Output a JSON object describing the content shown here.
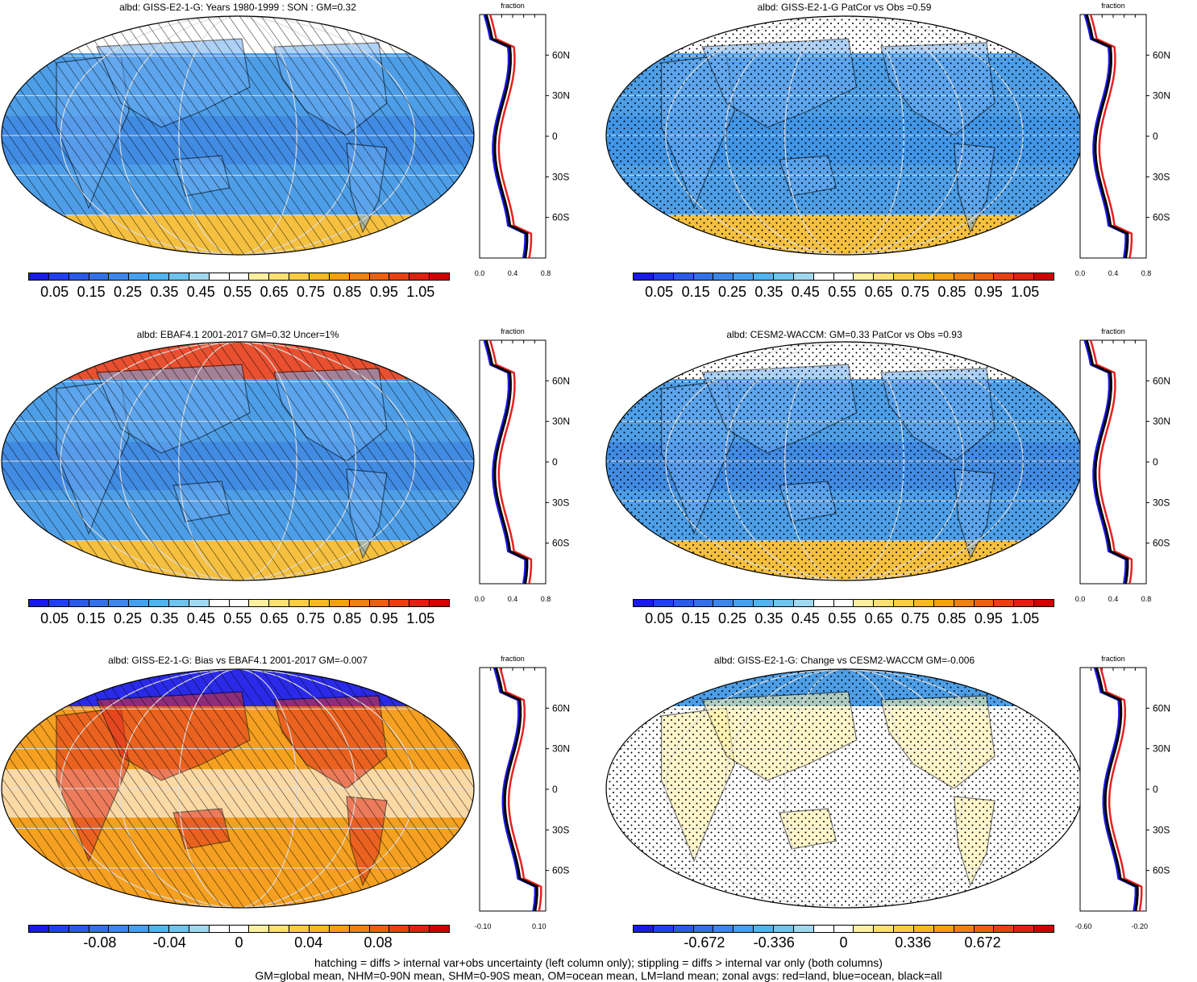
{
  "panels": [
    {
      "title": "albd: GISS-E2-1-G: Years 1980-1999 : SON : GM=0.32",
      "type": "abs",
      "mark": "hatch",
      "antarctic": "#f5c040",
      "arctic": "#ffffff",
      "ocean": "#4d9ee6",
      "land": "#6aaaf0",
      "tropics": "#3a7fe0"
    },
    {
      "title": "albd: GISS-E2-1-G PatCor vs Obs =0.59",
      "type": "abs",
      "mark": "stipple",
      "antarctic": "#f5c040",
      "arctic": "#ffffff",
      "ocean": "#4d9ee6",
      "land": "#6aaaf0",
      "tropics": "#3a8fe6"
    },
    {
      "title": "albd: EBAF4.1 2001-2017 GM=0.32 Uncer=1%",
      "type": "abs",
      "mark": "hatch",
      "antarctic": "#f5c040",
      "arctic": "#e85030",
      "ocean": "#4d9ee6",
      "land": "#6aaaf0",
      "tropics": "#3a7fe0"
    },
    {
      "title": "albd: CESM2-WACCM: GM=0.33 PatCor vs Obs =0.93",
      "type": "abs",
      "mark": "stipple",
      "antarctic": "#f5c040",
      "arctic": "#ffffff",
      "ocean": "#4d9ee6",
      "land": "#6aaaf0",
      "tropics": "#3a7fe0"
    },
    {
      "title": "albd: GISS-E2-1-G: Bias vs EBAF4.1 2001-2017  GM=-0.007",
      "type": "bias",
      "mark": "hatch",
      "antarctic": "#f5a020",
      "arctic": "#2a2ae8",
      "ocean": "#f5a020",
      "land": "#e03020",
      "tropics": "#ffffff"
    },
    {
      "title": "albd: GISS-E2-1-G: Change vs CESM2-WACCM GM=-0.006",
      "type": "change",
      "mark": "stipple",
      "antarctic": "#ffffff",
      "arctic": "#4d9ee6",
      "ocean": "#ffffff",
      "land": "#fff0a0",
      "tropics": "#ffffff"
    }
  ],
  "zonal": [
    {
      "label": "fraction",
      "ticks_x": [
        "0.0",
        "0.4",
        "0.8"
      ],
      "ticks_y": [
        "60N",
        "30N",
        "0",
        "30S",
        "60S"
      ]
    },
    {
      "label": "fraction",
      "ticks_x": [
        "0.0",
        "0.4",
        "0.8"
      ],
      "ticks_y": [
        "60N",
        "30N",
        "0",
        "30S",
        "60S"
      ]
    },
    {
      "label": "fraction",
      "ticks_x": [
        "0.0",
        "0.4",
        "0.8"
      ],
      "ticks_y": [
        "60N",
        "30N",
        "0",
        "30S",
        "60S"
      ]
    },
    {
      "label": "fraction",
      "ticks_x": [
        "0.0",
        "0.4",
        "0.8"
      ],
      "ticks_y": [
        "60N",
        "30N",
        "0",
        "30S",
        "60S"
      ]
    },
    {
      "label": "fraction",
      "ticks_x": [
        "-0.10",
        "0.10"
      ],
      "ticks_y": [
        "60N",
        "30N",
        "0",
        "30S",
        "60S"
      ]
    },
    {
      "label": "fraction",
      "ticks_x": [
        "-0.60",
        "-0.20"
      ],
      "ticks_y": [
        "60N",
        "30N",
        "0",
        "30S",
        "60S"
      ]
    }
  ],
  "colorbars": {
    "abs_labels": [
      "0.05",
      "0.15",
      "0.25",
      "0.35",
      "0.45",
      "0.55",
      "0.65",
      "0.75",
      "0.85",
      "0.95",
      "1.05"
    ],
    "bias_labels": [
      "-0.08",
      "-0.04",
      "0",
      "0.04",
      "0.08"
    ],
    "change_labels": [
      "-0.672",
      "-0.336",
      "0",
      "0.336",
      "0.672"
    ],
    "colors": [
      "#1a1ae6",
      "#2040f0",
      "#2a5ae8",
      "#3470e8",
      "#3c86ec",
      "#46a0f0",
      "#50b4f0",
      "#6ec4ee",
      "#a0d8f0",
      "#ffffff",
      "#ffffff",
      "#fff0a0",
      "#fde070",
      "#fccc40",
      "#f8b820",
      "#f5a010",
      "#f08010",
      "#ec6010",
      "#e84010",
      "#e02010",
      "#d00000"
    ]
  },
  "footer": {
    "line1": "hatching = diffs > internal var+obs uncertainty (left column only); stippling = diffs > internal var only (both columns)",
    "line2": "GM=global mean, NHM=0-90N mean, SHM=0-90S mean, OM=ocean mean, LM=land mean; zonal avgs: red=land, blue=ocean, black=all"
  },
  "legend_colors": {
    "land": "#e82020",
    "ocean": "#1a1ae6",
    "all": "#000000"
  }
}
